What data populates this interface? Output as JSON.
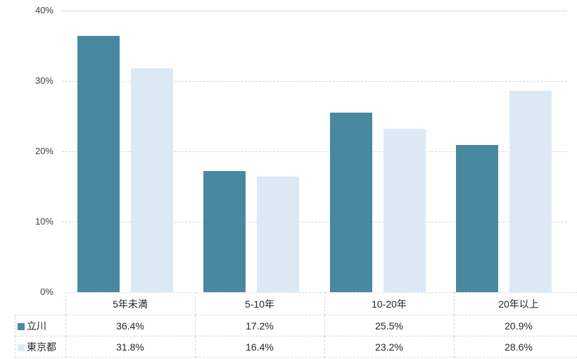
{
  "chart_data": {
    "type": "bar",
    "title": "",
    "xlabel": "",
    "ylabel": "",
    "categories": [
      "5年未満",
      "5-10年",
      "10-20年",
      "20年以上"
    ],
    "series": [
      {
        "name": "立川",
        "color": "#4889a0",
        "values": [
          36.4,
          17.2,
          25.5,
          20.9
        ]
      },
      {
        "name": "東京都",
        "color": "#dce9f5",
        "values": [
          31.8,
          16.4,
          23.2,
          28.6
        ]
      }
    ],
    "ylim": [
      0,
      40
    ],
    "yticks_top_to_bottom": [
      "40%",
      "30%",
      "20%",
      "10%",
      "0%"
    ],
    "grid": "horizontal, dashed, light-gray",
    "legend_position": "data-table-left-column",
    "gridline_color": "#d9d9d9"
  },
  "table": {
    "categories": [
      "5年未満",
      "5-10年",
      "10-20年",
      "20年以上"
    ],
    "rows": [
      {
        "label": "立川",
        "swatch_color": "#4889a0",
        "values": [
          "36.4%",
          "17.2%",
          "25.5%",
          "20.9%"
        ]
      },
      {
        "label": "東京都",
        "swatch_color": "#dce9f5",
        "values": [
          "31.8%",
          "16.4%",
          "23.2%",
          "28.6%"
        ]
      }
    ]
  }
}
